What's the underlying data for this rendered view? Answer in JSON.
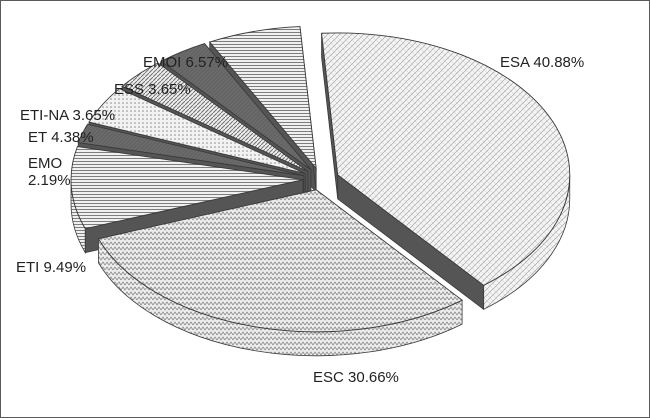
{
  "chart_data": {
    "type": "pie",
    "style": "3d-exploded-grayscale-patterns",
    "title": "",
    "slices": [
      {
        "key": "esa",
        "label": "ESA 40.88%",
        "value": 40.88,
        "pattern": "crosshatch-light"
      },
      {
        "key": "esc",
        "label": "ESC 30.66%",
        "value": 30.66,
        "pattern": "zigzag"
      },
      {
        "key": "eti",
        "label": "ETI 9.49%",
        "value": 9.49,
        "pattern": "horizontal-lines"
      },
      {
        "key": "emo",
        "label": "EMO\n2.19%",
        "value": 2.19,
        "pattern": "dark-gray"
      },
      {
        "key": "et",
        "label": "ET 4.38%",
        "value": 4.38,
        "pattern": "dots"
      },
      {
        "key": "eti-na",
        "label": "ETI-NA 3.65%",
        "value": 3.65,
        "pattern": "diagonal-lines"
      },
      {
        "key": "ess",
        "label": "ESS 3.65%",
        "value": 3.65,
        "pattern": "dark-gray"
      },
      {
        "key": "emoi",
        "label": "EMOI 6.57%",
        "value": 6.57,
        "pattern": "horizontal-lines"
      }
    ],
    "colors": {
      "outline": "#3a3a3a",
      "dark_side": "#555555",
      "light_fill": "#f2f2f2",
      "pattern_ink": "#8a8a8a"
    }
  }
}
